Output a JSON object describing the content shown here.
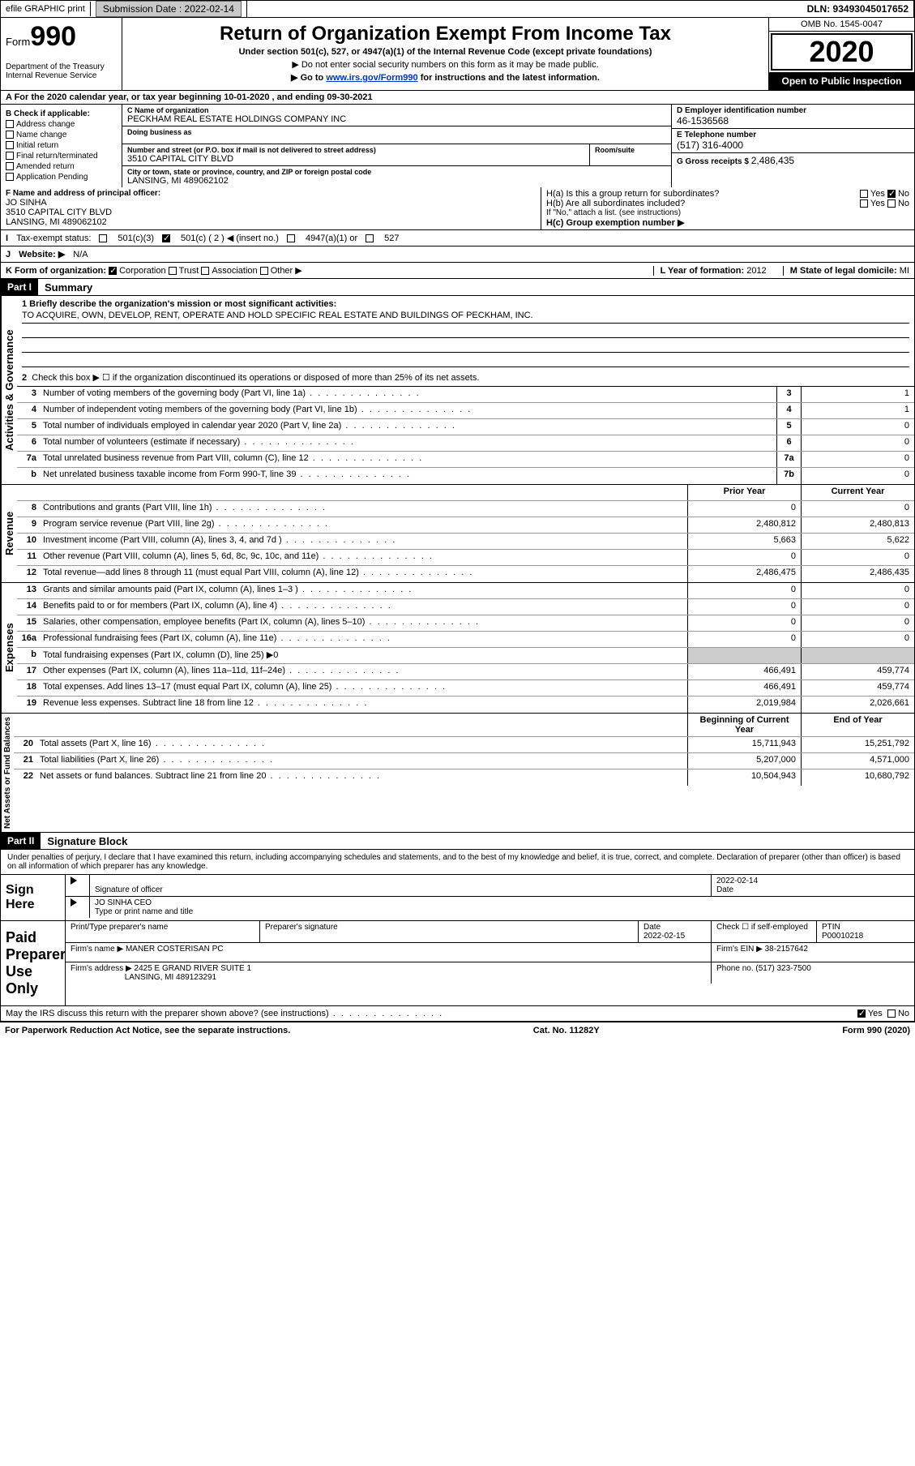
{
  "topbar": {
    "efile": "efile GRAPHIC print",
    "sub_label": "Submission Date : ",
    "sub_date": "2022-02-14",
    "dln": "DLN: 93493045017652"
  },
  "header": {
    "form_word": "Form",
    "form_num": "990",
    "dept": "Department of the Treasury\nInternal Revenue Service",
    "title": "Return of Organization Exempt From Income Tax",
    "sub": "Under section 501(c), 527, or 4947(a)(1) of the Internal Revenue Code (except private foundations)",
    "line1": "▶ Do not enter social security numbers on this form as it may be made public.",
    "line2_pre": "▶ Go to ",
    "line2_link": "www.irs.gov/Form990",
    "line2_post": " for instructions and the latest information.",
    "omb": "OMB No. 1545-0047",
    "year": "2020",
    "open": "Open to Public Inspection"
  },
  "row_a": "A For the 2020 calendar year, or tax year beginning 10-01-2020    , and ending 09-30-2021",
  "col_b": {
    "hdr": "B Check if applicable:",
    "items": [
      "Address change",
      "Name change",
      "Initial return",
      "Final return/terminated",
      "Amended return",
      "Application Pending"
    ]
  },
  "col_c": {
    "name_lbl": "C Name of organization",
    "name": "PECKHAM REAL ESTATE HOLDINGS COMPANY INC",
    "dba_lbl": "Doing business as",
    "dba": "",
    "addr_lbl": "Number and street (or P.O. box if mail is not delivered to street address)",
    "room_lbl": "Room/suite",
    "addr": "3510 CAPITAL CITY BLVD",
    "city_lbl": "City or town, state or province, country, and ZIP or foreign postal code",
    "city": "LANSING, MI  489062102"
  },
  "col_de": {
    "d_lbl": "D Employer identification number",
    "d_val": "46-1536568",
    "e_lbl": "E Telephone number",
    "e_val": "(517) 316-4000",
    "g_lbl": "G Gross receipts $ ",
    "g_val": "2,486,435"
  },
  "fgh": {
    "f_lbl": "F Name and address of principal officer:",
    "f_name": "JO SINHA",
    "f_addr1": "3510 CAPITAL CITY BLVD",
    "f_addr2": "LANSING, MI  489062102",
    "ha": "H(a)  Is this a group return for subordinates?",
    "hb": "H(b)  Are all subordinates included?",
    "hnote": "If \"No,\" attach a list. (see instructions)",
    "hc": "H(c)  Group exemption number ▶",
    "yes": "Yes",
    "no": "No"
  },
  "status": {
    "lbl": "Tax-exempt status:",
    "o1": "501(c)(3)",
    "o2": "501(c) ( 2 ) ◀ (insert no.)",
    "o3": "4947(a)(1) or",
    "o4": "527"
  },
  "website": {
    "lbl": "Website: ▶",
    "val": "N/A"
  },
  "korg": {
    "lbl": "K Form of organization:",
    "o1": "Corporation",
    "o2": "Trust",
    "o3": "Association",
    "o4": "Other ▶",
    "l_lbl": "L Year of formation: ",
    "l_val": "2012",
    "m_lbl": "M State of legal domicile: ",
    "m_val": "MI"
  },
  "part1": {
    "hdr": "Part I",
    "title": "Summary"
  },
  "mission": {
    "q1": "1  Briefly describe the organization's mission or most significant activities:",
    "text": "TO ACQUIRE, OWN, DEVELOP, RENT, OPERATE AND HOLD SPECIFIC REAL ESTATE AND BUILDINGS OF PECKHAM, INC.",
    "q2": "Check this box ▶ ☐  if the organization discontinued its operations or disposed of more than 25% of its net assets."
  },
  "gov_lines": [
    {
      "n": "3",
      "t": "Number of voting members of the governing body (Part VI, line 1a)",
      "b": "3",
      "v": "1"
    },
    {
      "n": "4",
      "t": "Number of independent voting members of the governing body (Part VI, line 1b)",
      "b": "4",
      "v": "1"
    },
    {
      "n": "5",
      "t": "Total number of individuals employed in calendar year 2020 (Part V, line 2a)",
      "b": "5",
      "v": "0"
    },
    {
      "n": "6",
      "t": "Total number of volunteers (estimate if necessary)",
      "b": "6",
      "v": "0"
    },
    {
      "n": "7a",
      "t": "Total unrelated business revenue from Part VIII, column (C), line 12",
      "b": "7a",
      "v": "0"
    },
    {
      "n": "b",
      "t": "Net unrelated business taxable income from Form 990-T, line 39",
      "b": "7b",
      "v": "0"
    }
  ],
  "rev_hdr": {
    "c1": "Prior Year",
    "c2": "Current Year"
  },
  "rev_lines": [
    {
      "n": "8",
      "t": "Contributions and grants (Part VIII, line 1h)",
      "v1": "0",
      "v2": "0"
    },
    {
      "n": "9",
      "t": "Program service revenue (Part VIII, line 2g)",
      "v1": "2,480,812",
      "v2": "2,480,813"
    },
    {
      "n": "10",
      "t": "Investment income (Part VIII, column (A), lines 3, 4, and 7d )",
      "v1": "5,663",
      "v2": "5,622"
    },
    {
      "n": "11",
      "t": "Other revenue (Part VIII, column (A), lines 5, 6d, 8c, 9c, 10c, and 11e)",
      "v1": "0",
      "v2": "0"
    },
    {
      "n": "12",
      "t": "Total revenue—add lines 8 through 11 (must equal Part VIII, column (A), line 12)",
      "v1": "2,486,475",
      "v2": "2,486,435"
    }
  ],
  "exp_lines": [
    {
      "n": "13",
      "t": "Grants and similar amounts paid (Part IX, column (A), lines 1–3 )",
      "v1": "0",
      "v2": "0"
    },
    {
      "n": "14",
      "t": "Benefits paid to or for members (Part IX, column (A), line 4)",
      "v1": "0",
      "v2": "0"
    },
    {
      "n": "15",
      "t": "Salaries, other compensation, employee benefits (Part IX, column (A), lines 5–10)",
      "v1": "0",
      "v2": "0"
    },
    {
      "n": "16a",
      "t": "Professional fundraising fees (Part IX, column (A), line 11e)",
      "v1": "0",
      "v2": "0"
    },
    {
      "n": "b",
      "t": "Total fundraising expenses (Part IX, column (D), line 25) ▶0",
      "v1": "",
      "v2": "",
      "shade": true
    },
    {
      "n": "17",
      "t": "Other expenses (Part IX, column (A), lines 11a–11d, 11f–24e)",
      "v1": "466,491",
      "v2": "459,774"
    },
    {
      "n": "18",
      "t": "Total expenses. Add lines 13–17 (must equal Part IX, column (A), line 25)",
      "v1": "466,491",
      "v2": "459,774"
    },
    {
      "n": "19",
      "t": "Revenue less expenses. Subtract line 18 from line 12",
      "v1": "2,019,984",
      "v2": "2,026,661"
    }
  ],
  "net_hdr": {
    "c1": "Beginning of Current Year",
    "c2": "End of Year"
  },
  "net_lines": [
    {
      "n": "20",
      "t": "Total assets (Part X, line 16)",
      "v1": "15,711,943",
      "v2": "15,251,792"
    },
    {
      "n": "21",
      "t": "Total liabilities (Part X, line 26)",
      "v1": "5,207,000",
      "v2": "4,571,000"
    },
    {
      "n": "22",
      "t": "Net assets or fund balances. Subtract line 21 from line 20",
      "v1": "10,504,943",
      "v2": "10,680,792"
    }
  ],
  "part2": {
    "hdr": "Part II",
    "title": "Signature Block"
  },
  "sig": {
    "decl": "Under penalties of perjury, I declare that I have examined this return, including accompanying schedules and statements, and to the best of my knowledge and belief, it is true, correct, and complete. Declaration of preparer (other than officer) is based on all information of which preparer has any knowledge.",
    "sign_here": "Sign Here",
    "sig_off": "Signature of officer",
    "date": "Date",
    "date_v": "2022-02-14",
    "name": "JO SINHA CEO",
    "name_lbl": "Type or print name and title",
    "paid": "Paid Preparer Use Only",
    "pt_name_lbl": "Print/Type preparer's name",
    "pt_sig_lbl": "Preparer's signature",
    "pt_date_lbl": "Date",
    "pt_date_v": "2022-02-15",
    "pt_chk": "Check ☐ if self-employed",
    "ptin_lbl": "PTIN",
    "ptin_v": "P00010218",
    "firm_name_lbl": "Firm's name    ▶ ",
    "firm_name": "MANER COSTERISAN PC",
    "firm_ein_lbl": "Firm's EIN ▶ ",
    "firm_ein": "38-2157642",
    "firm_addr_lbl": "Firm's address ▶ ",
    "firm_addr1": "2425 E GRAND RIVER SUITE 1",
    "firm_addr2": "LANSING, MI  489123291",
    "phone_lbl": "Phone no. ",
    "phone": "(517) 323-7500",
    "discuss": "May the IRS discuss this return with the preparer shown above? (see instructions)"
  },
  "footer": {
    "l": "For Paperwork Reduction Act Notice, see the separate instructions.",
    "c": "Cat. No. 11282Y",
    "r": "Form 990 (2020)"
  },
  "vtabs": {
    "gov": "Activities & Governance",
    "rev": "Revenue",
    "exp": "Expenses",
    "net": "Net Assets or Fund Balances"
  },
  "colors": {
    "black": "#000000",
    "gray_btn": "#c8c8c8",
    "shade": "#cccccc",
    "link": "#0033cc"
  }
}
